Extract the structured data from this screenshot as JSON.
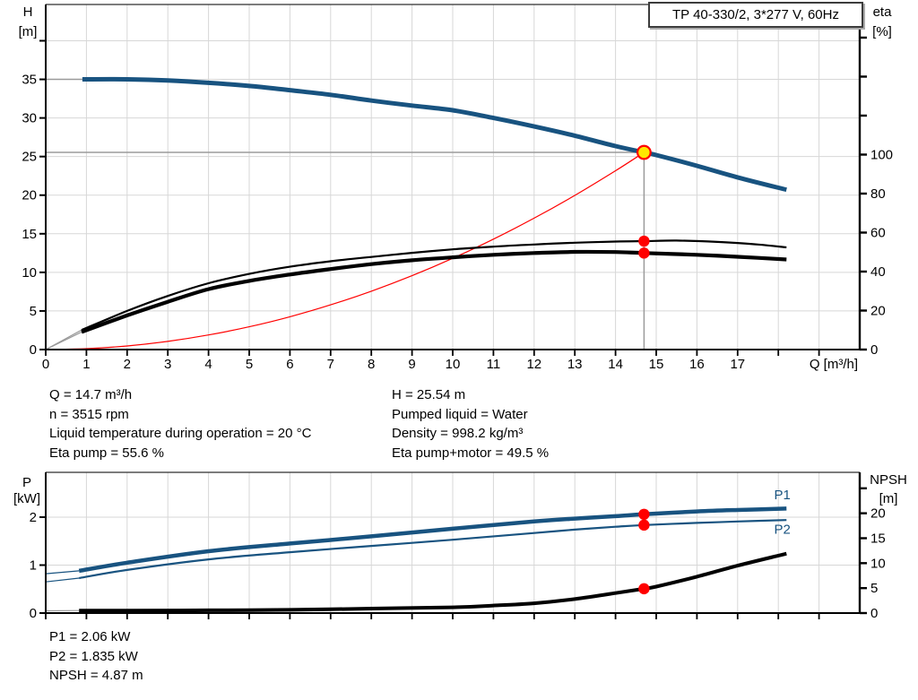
{
  "title_box": {
    "text": "TP 40-330/2, 3*277 V, 60Hz"
  },
  "info": {
    "mid_left": [
      "Q = 14.7 m³/h",
      "n = 3515 rpm",
      "Liquid temperature during operation = 20 °C",
      "Eta pump = 55.6 %"
    ],
    "mid_right": [
      "H = 25.54 m",
      "Pumped liquid = Water",
      "Density = 998.2 kg/m³",
      "Eta pump+motor = 49.5 %"
    ],
    "bottom": [
      "P1 = 2.06 kW",
      "P2 = 1.835 kW",
      "NPSH = 4.87 m"
    ]
  },
  "colors": {
    "curve_blue": "#185380",
    "red": "#ff0000",
    "yellow": "#ffe600",
    "black": "#000000",
    "grid": "#d7d7d7",
    "op_line": "#9b9b9b",
    "lead_gray": "#9a9a9a",
    "axis": "#000000",
    "text": "#000000"
  },
  "chart_data": [
    {
      "type": "line",
      "name": "head-efficiency-chart",
      "title": "TP 40-330/2, 3*277 V, 60Hz",
      "x": {
        "min": 0,
        "max": 20,
        "label": "Q [m³/h]",
        "ticks": [
          0,
          1,
          2,
          3,
          4,
          5,
          6,
          7,
          8,
          9,
          10,
          11,
          12,
          13,
          14,
          15,
          16,
          17,
          18,
          19
        ],
        "tick_labels": [
          "0",
          "1",
          "2",
          "3",
          "4",
          "5",
          "6",
          "7",
          "8",
          "9",
          "10",
          "11",
          "12",
          "13",
          "14",
          "15",
          "16",
          "17",
          "",
          ""
        ]
      },
      "y_left": {
        "min": 0,
        "max": 44.7,
        "title_lines": [
          "H",
          "[m]"
        ],
        "ticks": [
          0,
          5,
          10,
          15,
          20,
          25,
          30,
          35,
          40
        ],
        "tick_labels": [
          "0",
          "5",
          "10",
          "15",
          "20",
          "25",
          "30",
          "35",
          ""
        ]
      },
      "y_right": {
        "min": 0,
        "max": 177,
        "title_lines": [
          "eta",
          "[%]"
        ],
        "ticks": [
          0,
          20,
          40,
          60,
          80,
          100,
          120,
          140,
          160
        ],
        "tick_labels": [
          "0",
          "20",
          "40",
          "60",
          "80",
          "100",
          "",
          "",
          ""
        ]
      },
      "series": [
        {
          "name": "op-line-horizontal",
          "color": "op_line",
          "width": 1.5,
          "axis": "left",
          "points": [
            [
              0,
              25.54
            ],
            [
              14.7,
              25.54
            ]
          ]
        },
        {
          "name": "op-line-vertical",
          "color": "op_line",
          "width": 1.5,
          "axis": "left",
          "points": [
            [
              14.7,
              0
            ],
            [
              14.7,
              25.54
            ]
          ]
        },
        {
          "name": "system-curve",
          "color": "red",
          "width": 1.2,
          "axis": "left",
          "points": [
            [
              0,
              0
            ],
            [
              1,
              0.12
            ],
            [
              2,
              0.47
            ],
            [
              3,
              1.06
            ],
            [
              4,
              1.89
            ],
            [
              5,
              2.95
            ],
            [
              6,
              4.25
            ],
            [
              7,
              5.79
            ],
            [
              8,
              7.56
            ],
            [
              9,
              9.57
            ],
            [
              10,
              11.82
            ],
            [
              11,
              14.3
            ],
            [
              12,
              17.02
            ],
            [
              13,
              19.97
            ],
            [
              14,
              23.16
            ],
            [
              14.7,
              25.54
            ]
          ]
        },
        {
          "name": "head-curve-leadin",
          "color": "lead_gray",
          "width": 1.4,
          "axis": "left",
          "points": [
            [
              0,
              35
            ],
            [
              0.95,
              35
            ]
          ]
        },
        {
          "name": "eta-pump-leadin",
          "color": "lead_gray",
          "width": 1.2,
          "axis": "right",
          "points": [
            [
              0,
              0
            ],
            [
              0.88,
              10
            ]
          ]
        },
        {
          "name": "eta-pump-motor-leadin",
          "color": "lead_gray",
          "width": 1.2,
          "axis": "right",
          "points": [
            [
              0,
              0
            ],
            [
              0.88,
              9
            ]
          ]
        },
        {
          "name": "eta-pump-curve",
          "color": "black",
          "width": 2.2,
          "axis": "right",
          "points": [
            [
              0.88,
              10
            ],
            [
              2,
              19.8
            ],
            [
              3,
              27.5
            ],
            [
              4,
              34
            ],
            [
              5,
              38.8
            ],
            [
              6,
              42.5
            ],
            [
              7,
              45.3
            ],
            [
              8,
              47.5
            ],
            [
              9,
              49.6
            ],
            [
              10,
              51.4
            ],
            [
              11,
              52.8
            ],
            [
              12,
              53.9
            ],
            [
              13,
              54.8
            ],
            [
              14,
              55.4
            ],
            [
              14.7,
              55.6
            ],
            [
              15.5,
              55.9
            ],
            [
              16.5,
              55.2
            ],
            [
              17.5,
              53.9
            ],
            [
              18.2,
              52.4
            ]
          ]
        },
        {
          "name": "eta-pump-motor-curve",
          "color": "black",
          "width": 4.2,
          "axis": "right",
          "points": [
            [
              0.88,
              9
            ],
            [
              2,
              17.5
            ],
            [
              3,
              24.5
            ],
            [
              4,
              31
            ],
            [
              5,
              35.2
            ],
            [
              6,
              38.5
            ],
            [
              7,
              41.3
            ],
            [
              8,
              43.8
            ],
            [
              9,
              45.8
            ],
            [
              10,
              47.3
            ],
            [
              11,
              48.6
            ],
            [
              12,
              49.5
            ],
            [
              13,
              50.1
            ],
            [
              14,
              50
            ],
            [
              14.7,
              49.5
            ],
            [
              16,
              48.6
            ],
            [
              17,
              47.6
            ],
            [
              18.2,
              46.2
            ]
          ]
        },
        {
          "name": "head-curve",
          "color": "curve_blue",
          "width": 5,
          "axis": "left",
          "points": [
            [
              0.9,
              35
            ],
            [
              2,
              35
            ],
            [
              3,
              34.85
            ],
            [
              4,
              34.55
            ],
            [
              5,
              34.15
            ],
            [
              6,
              33.6
            ],
            [
              7,
              33
            ],
            [
              8,
              32.25
            ],
            [
              9,
              31.6
            ],
            [
              10,
              31
            ],
            [
              11,
              30
            ],
            [
              12,
              28.9
            ],
            [
              13,
              27.7
            ],
            [
              14,
              26.35
            ],
            [
              14.7,
              25.54
            ],
            [
              15,
              25.2
            ],
            [
              16,
              23.8
            ],
            [
              17,
              22.3
            ],
            [
              18.2,
              20.7
            ]
          ]
        }
      ],
      "markers": [
        {
          "name": "eta-pump-point",
          "type": "dot",
          "x": 14.7,
          "value": 55.6,
          "axis": "right",
          "color": "red"
        },
        {
          "name": "eta-pump-motor-point",
          "type": "dot",
          "x": 14.7,
          "value": 49.5,
          "axis": "right",
          "color": "red"
        },
        {
          "name": "duty-point",
          "type": "duty",
          "x": 14.7,
          "value": 25.54,
          "axis": "left",
          "fill": "yellow",
          "stroke": "red"
        }
      ],
      "annotations": []
    },
    {
      "type": "line",
      "name": "power-npsh-chart",
      "x": {
        "min": 0,
        "max": 20,
        "label": "",
        "ticks": [
          0,
          1,
          2,
          3,
          4,
          5,
          6,
          7,
          8,
          9,
          10,
          11,
          12,
          13,
          14,
          15,
          16,
          17,
          18,
          19
        ],
        "tick_labels": [
          "",
          "",
          "",
          "",
          "",
          "",
          "",
          "",
          "",
          "",
          "",
          "",
          "",
          "",
          "",
          "",
          "",
          "",
          "",
          ""
        ]
      },
      "y_left": {
        "min": 0,
        "max": 2.935,
        "title_lines": [
          "P",
          "[kW]"
        ],
        "ticks": [
          0,
          1,
          2
        ],
        "tick_labels": [
          "0",
          "1",
          "2"
        ]
      },
      "y_right": {
        "min": 0,
        "max": 28.2,
        "title_lines": [
          "NPSH",
          "[m]"
        ],
        "ticks": [
          0,
          5,
          10,
          15,
          20,
          25
        ],
        "tick_labels": [
          "0",
          "5",
          "10",
          "15",
          "20",
          ""
        ]
      },
      "series": [
        {
          "name": "p1-curve-leadin",
          "color": "curve_blue",
          "width": 1.2,
          "axis": "left",
          "points": [
            [
              0,
              0.82
            ],
            [
              0.82,
              0.88
            ]
          ]
        },
        {
          "name": "p2-curve-leadin",
          "color": "curve_blue",
          "width": 1.2,
          "axis": "left",
          "points": [
            [
              0,
              0.65
            ],
            [
              0.82,
              0.73
            ]
          ]
        },
        {
          "name": "npsh-curve-leadin",
          "color": "lead_gray",
          "width": 1.2,
          "axis": "right",
          "points": [
            [
              0,
              0.45
            ],
            [
              0.82,
              0.5
            ]
          ]
        },
        {
          "name": "npsh-curve",
          "color": "black",
          "width": 4,
          "axis": "right",
          "points": [
            [
              0.82,
              0.5
            ],
            [
              2,
              0.5
            ],
            [
              4,
              0.55
            ],
            [
              6,
              0.65
            ],
            [
              8,
              0.9
            ],
            [
              10,
              1.15
            ],
            [
              11,
              1.5
            ],
            [
              12,
              1.95
            ],
            [
              13,
              2.8
            ],
            [
              14,
              4
            ],
            [
              14.7,
              4.87
            ],
            [
              15,
              5.3
            ],
            [
              16,
              7.3
            ],
            [
              17,
              9.5
            ],
            [
              18.2,
              11.9
            ]
          ]
        },
        {
          "name": "p2-curve",
          "color": "curve_blue",
          "width": 2.2,
          "axis": "left",
          "points": [
            [
              0.82,
              0.73
            ],
            [
              2,
              0.9
            ],
            [
              4,
              1.12
            ],
            [
              6,
              1.27
            ],
            [
              8,
              1.4
            ],
            [
              10,
              1.53
            ],
            [
              12,
              1.67
            ],
            [
              13,
              1.74
            ],
            [
              14,
              1.8
            ],
            [
              14.7,
              1.835
            ],
            [
              16,
              1.88
            ],
            [
              17,
              1.91
            ],
            [
              18.2,
              1.94
            ]
          ]
        },
        {
          "name": "p1-curve",
          "color": "curve_blue",
          "width": 4.5,
          "axis": "left",
          "points": [
            [
              0.82,
              0.88
            ],
            [
              2,
              1.05
            ],
            [
              4,
              1.29
            ],
            [
              6,
              1.45
            ],
            [
              8,
              1.6
            ],
            [
              10,
              1.76
            ],
            [
              12,
              1.91
            ],
            [
              13,
              1.97
            ],
            [
              14,
              2.02
            ],
            [
              14.7,
              2.06
            ],
            [
              16,
              2.12
            ],
            [
              17,
              2.15
            ],
            [
              18.2,
              2.18
            ]
          ]
        }
      ],
      "markers": [
        {
          "name": "p1-point",
          "type": "dot",
          "x": 14.7,
          "value": 2.06,
          "axis": "left",
          "color": "red"
        },
        {
          "name": "p2-point",
          "type": "dot",
          "x": 14.7,
          "value": 1.835,
          "axis": "left",
          "color": "red"
        },
        {
          "name": "npsh-point",
          "type": "dot",
          "x": 14.7,
          "value": 4.87,
          "axis": "right",
          "color": "red"
        }
      ],
      "annotations": [
        {
          "name": "p1-curve-label",
          "text": "P1",
          "x": 18.1,
          "value": 2.47,
          "axis": "left",
          "color": "curve_blue"
        },
        {
          "name": "p2-curve-label",
          "text": "P2",
          "x": 18.1,
          "value": 1.757,
          "axis": "left",
          "color": "curve_blue"
        }
      ]
    }
  ]
}
